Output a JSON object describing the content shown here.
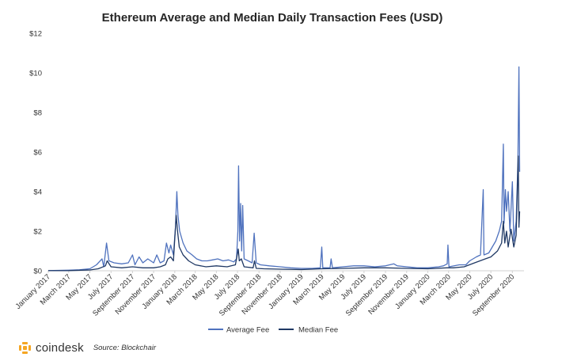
{
  "chart_data": {
    "type": "line",
    "title": "Ethereum Average and Median Daily Transaction Fees (USD)",
    "xlabel": "",
    "ylabel": "",
    "ylim": [
      0,
      12
    ],
    "yticks": [
      "$0",
      "$2",
      "$4",
      "$6",
      "$8",
      "$10",
      "$12"
    ],
    "x_range": [
      "2017-01-01",
      "2020-09-30"
    ],
    "x_tick_labels": [
      "January 2017",
      "March 2017",
      "May 2017",
      "July 2017",
      "September 2017",
      "November 2017",
      "January 2018",
      "March 2018",
      "May 2018",
      "July 2018",
      "September 2018",
      "November 2018",
      "January 2019",
      "March 2019",
      "May 2019",
      "July 2019",
      "September 2019",
      "November 2019",
      "January 2020",
      "March 2020",
      "May 2020",
      "July 2020",
      "September 2020"
    ],
    "grid": false,
    "legend_position": "bottom",
    "series": [
      {
        "name": "Average Fee",
        "color": "#4f72be",
        "points": [
          [
            "2017-01-01",
            0.01
          ],
          [
            "2017-02-01",
            0.02
          ],
          [
            "2017-03-01",
            0.03
          ],
          [
            "2017-04-01",
            0.05
          ],
          [
            "2017-05-01",
            0.1
          ],
          [
            "2017-05-20",
            0.3
          ],
          [
            "2017-06-05",
            0.6
          ],
          [
            "2017-06-10",
            0.2
          ],
          [
            "2017-06-18",
            1.4
          ],
          [
            "2017-06-25",
            0.5
          ],
          [
            "2017-07-10",
            0.4
          ],
          [
            "2017-08-01",
            0.35
          ],
          [
            "2017-08-20",
            0.4
          ],
          [
            "2017-09-01",
            0.8
          ],
          [
            "2017-09-08",
            0.3
          ],
          [
            "2017-09-20",
            0.7
          ],
          [
            "2017-10-01",
            0.4
          ],
          [
            "2017-10-15",
            0.6
          ],
          [
            "2017-11-01",
            0.4
          ],
          [
            "2017-11-10",
            0.8
          ],
          [
            "2017-11-20",
            0.4
          ],
          [
            "2017-12-01",
            0.5
          ],
          [
            "2017-12-08",
            1.4
          ],
          [
            "2017-12-15",
            0.9
          ],
          [
            "2017-12-20",
            1.3
          ],
          [
            "2017-12-28",
            0.8
          ],
          [
            "2018-01-03",
            2.2
          ],
          [
            "2018-01-07",
            4.0
          ],
          [
            "2018-01-10",
            2.8
          ],
          [
            "2018-01-15",
            2.0
          ],
          [
            "2018-01-25",
            1.4
          ],
          [
            "2018-02-05",
            1.0
          ],
          [
            "2018-02-20",
            0.8
          ],
          [
            "2018-03-05",
            0.6
          ],
          [
            "2018-03-20",
            0.5
          ],
          [
            "2018-04-05",
            0.5
          ],
          [
            "2018-04-20",
            0.55
          ],
          [
            "2018-05-05",
            0.6
          ],
          [
            "2018-05-20",
            0.5
          ],
          [
            "2018-06-05",
            0.55
          ],
          [
            "2018-06-20",
            0.45
          ],
          [
            "2018-06-28",
            0.6
          ],
          [
            "2018-07-02",
            2.0
          ],
          [
            "2018-07-04",
            5.3
          ],
          [
            "2018-07-07",
            1.5
          ],
          [
            "2018-07-10",
            3.4
          ],
          [
            "2018-07-13",
            1.0
          ],
          [
            "2018-07-16",
            3.3
          ],
          [
            "2018-07-20",
            0.6
          ],
          [
            "2018-08-01",
            0.5
          ],
          [
            "2018-08-12",
            0.4
          ],
          [
            "2018-08-18",
            1.9
          ],
          [
            "2018-08-24",
            0.4
          ],
          [
            "2018-09-05",
            0.3
          ],
          [
            "2018-10-01",
            0.25
          ],
          [
            "2018-11-01",
            0.2
          ],
          [
            "2018-12-01",
            0.15
          ],
          [
            "2019-01-01",
            0.12
          ],
          [
            "2019-02-01",
            0.12
          ],
          [
            "2019-02-25",
            0.15
          ],
          [
            "2019-03-01",
            1.2
          ],
          [
            "2019-03-04",
            0.15
          ],
          [
            "2019-03-25",
            0.15
          ],
          [
            "2019-03-28",
            0.6
          ],
          [
            "2019-04-01",
            0.15
          ],
          [
            "2019-05-01",
            0.2
          ],
          [
            "2019-06-01",
            0.25
          ],
          [
            "2019-07-01",
            0.25
          ],
          [
            "2019-08-01",
            0.2
          ],
          [
            "2019-09-01",
            0.25
          ],
          [
            "2019-09-25",
            0.35
          ],
          [
            "2019-10-05",
            0.25
          ],
          [
            "2019-11-01",
            0.2
          ],
          [
            "2019-12-01",
            0.15
          ],
          [
            "2020-01-01",
            0.15
          ],
          [
            "2020-02-01",
            0.2
          ],
          [
            "2020-02-15",
            0.25
          ],
          [
            "2020-02-26",
            0.35
          ],
          [
            "2020-02-28",
            1.3
          ],
          [
            "2020-03-02",
            0.2
          ],
          [
            "2020-04-01",
            0.3
          ],
          [
            "2020-04-20",
            0.3
          ],
          [
            "2020-05-01",
            0.5
          ],
          [
            "2020-05-20",
            0.7
          ],
          [
            "2020-06-01",
            0.8
          ],
          [
            "2020-06-09",
            4.1
          ],
          [
            "2020-06-11",
            0.8
          ],
          [
            "2020-06-25",
            0.9
          ],
          [
            "2020-07-05",
            1.2
          ],
          [
            "2020-07-15",
            1.5
          ],
          [
            "2020-07-25",
            2.0
          ],
          [
            "2020-08-01",
            2.5
          ],
          [
            "2020-08-06",
            6.4
          ],
          [
            "2020-08-08",
            2.4
          ],
          [
            "2020-08-12",
            4.1
          ],
          [
            "2020-08-15",
            3.0
          ],
          [
            "2020-08-20",
            4.0
          ],
          [
            "2020-08-25",
            2.0
          ],
          [
            "2020-09-01",
            4.5
          ],
          [
            "2020-09-05",
            1.5
          ],
          [
            "2020-09-12",
            2.5
          ],
          [
            "2020-09-17",
            5.5
          ],
          [
            "2020-09-20",
            10.3
          ],
          [
            "2020-09-22",
            5.0
          ]
        ]
      },
      {
        "name": "Median Fee",
        "color": "#1f3864",
        "points": [
          [
            "2017-01-01",
            0.005
          ],
          [
            "2017-03-01",
            0.01
          ],
          [
            "2017-05-01",
            0.04
          ],
          [
            "2017-05-25",
            0.1
          ],
          [
            "2017-06-15",
            0.25
          ],
          [
            "2017-06-20",
            0.5
          ],
          [
            "2017-07-01",
            0.2
          ],
          [
            "2017-08-01",
            0.15
          ],
          [
            "2017-09-01",
            0.2
          ],
          [
            "2017-10-01",
            0.15
          ],
          [
            "2017-11-01",
            0.15
          ],
          [
            "2017-11-20",
            0.2
          ],
          [
            "2017-12-05",
            0.3
          ],
          [
            "2017-12-12",
            0.6
          ],
          [
            "2017-12-20",
            0.7
          ],
          [
            "2017-12-28",
            0.5
          ],
          [
            "2018-01-05",
            2.8
          ],
          [
            "2018-01-09",
            2.0
          ],
          [
            "2018-01-14",
            1.2
          ],
          [
            "2018-01-25",
            0.8
          ],
          [
            "2018-02-10",
            0.5
          ],
          [
            "2018-03-01",
            0.3
          ],
          [
            "2018-04-01",
            0.2
          ],
          [
            "2018-05-01",
            0.25
          ],
          [
            "2018-06-01",
            0.2
          ],
          [
            "2018-06-25",
            0.3
          ],
          [
            "2018-07-03",
            1.1
          ],
          [
            "2018-07-06",
            0.5
          ],
          [
            "2018-07-12",
            0.6
          ],
          [
            "2018-07-20",
            0.2
          ],
          [
            "2018-08-15",
            0.15
          ],
          [
            "2018-08-19",
            0.5
          ],
          [
            "2018-08-24",
            0.12
          ],
          [
            "2018-09-15",
            0.1
          ],
          [
            "2018-11-01",
            0.08
          ],
          [
            "2019-01-01",
            0.06
          ],
          [
            "2019-03-01",
            0.1
          ],
          [
            "2019-05-01",
            0.12
          ],
          [
            "2019-07-01",
            0.15
          ],
          [
            "2019-09-01",
            0.15
          ],
          [
            "2019-11-01",
            0.12
          ],
          [
            "2020-01-01",
            0.1
          ],
          [
            "2020-02-25",
            0.15
          ],
          [
            "2020-03-15",
            0.15
          ],
          [
            "2020-04-15",
            0.2
          ],
          [
            "2020-05-15",
            0.4
          ],
          [
            "2020-06-15",
            0.6
          ],
          [
            "2020-07-01",
            0.7
          ],
          [
            "2020-07-20",
            1.0
          ],
          [
            "2020-08-01",
            1.4
          ],
          [
            "2020-08-06",
            2.5
          ],
          [
            "2020-08-10",
            1.4
          ],
          [
            "2020-08-15",
            2.0
          ],
          [
            "2020-08-20",
            1.2
          ],
          [
            "2020-08-28",
            2.1
          ],
          [
            "2020-09-05",
            1.2
          ],
          [
            "2020-09-12",
            1.8
          ],
          [
            "2020-09-18",
            5.8
          ],
          [
            "2020-09-20",
            2.2
          ],
          [
            "2020-09-22",
            3.0
          ]
        ]
      }
    ]
  },
  "footer": {
    "brand": "coindesk",
    "source": "Source: Blockchair"
  }
}
